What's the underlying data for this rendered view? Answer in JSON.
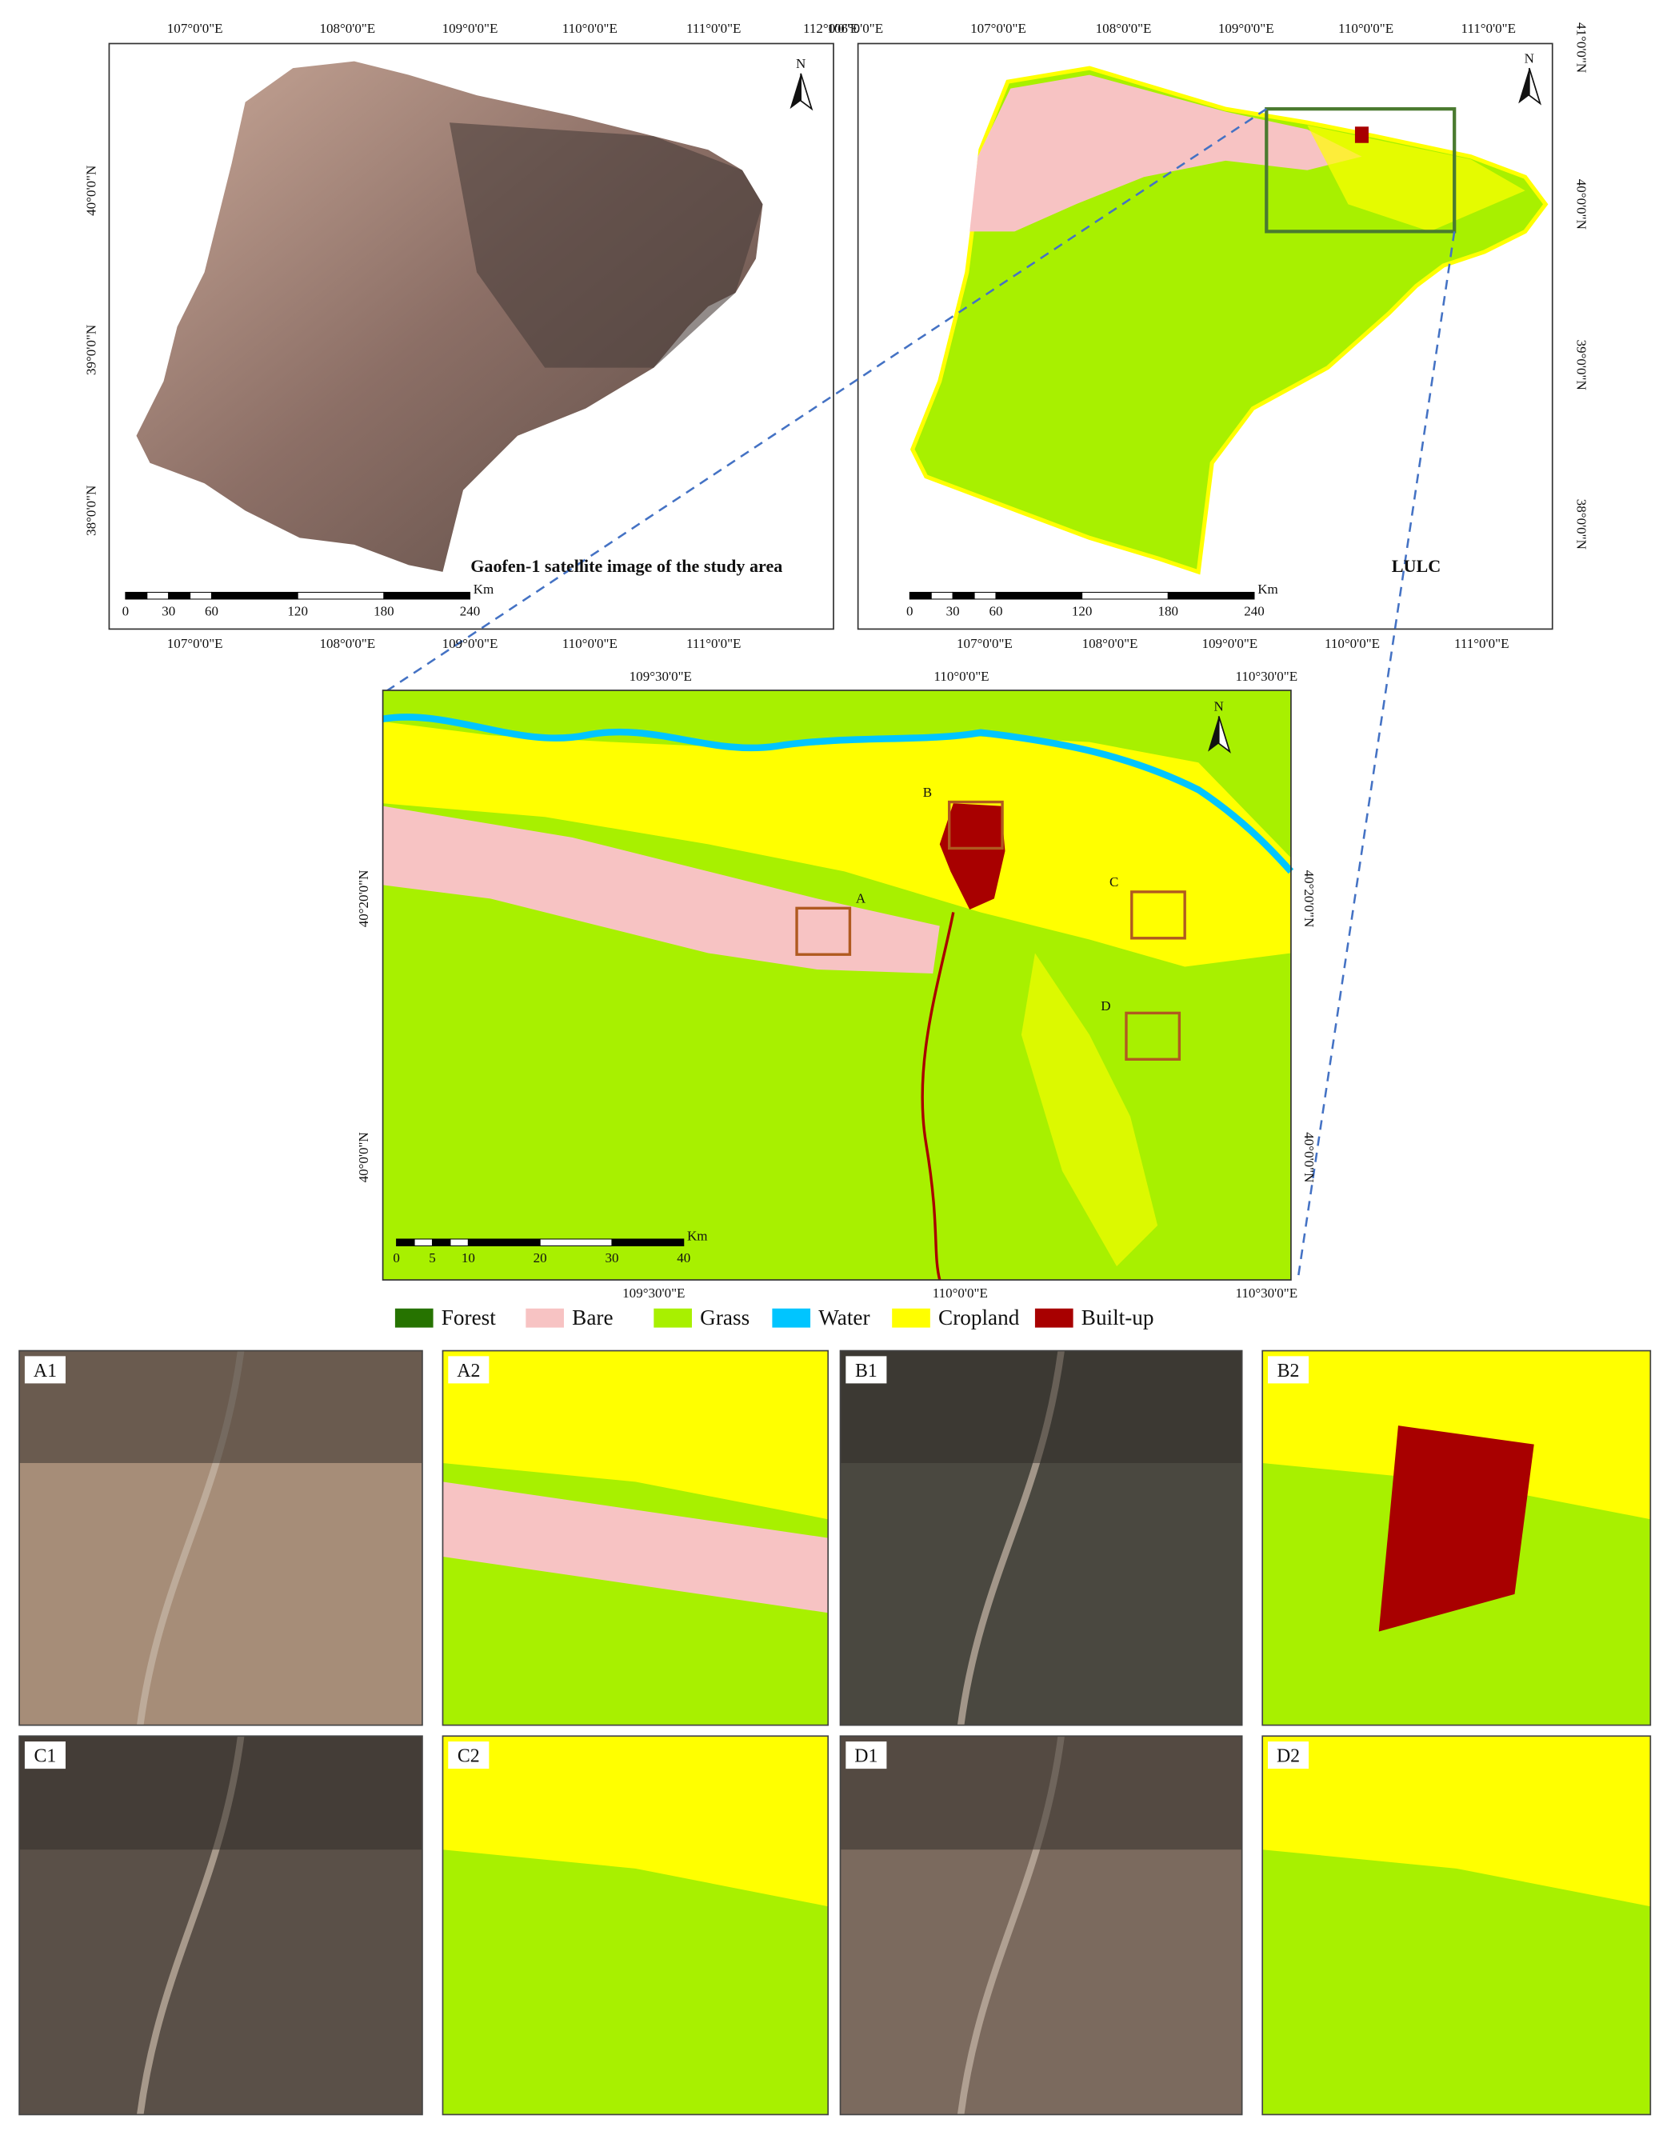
{
  "panels": {
    "satellite": {
      "title": "Gaofen-1 satellite image of the study area",
      "north": "N",
      "top_labels": [
        "107°0'0\"E",
        "108°0'0\"E",
        "109°0'0\"E",
        "110°0'0\"E",
        "111°0'0\"E",
        "112°0'0\"E"
      ],
      "bottom_labels": [
        "107°0'0\"E",
        "108°0'0\"E",
        "109°0'0\"E",
        "110°0'0\"E",
        "111°0'0\"E"
      ],
      "lat_labels": [
        "40°0'0\"N",
        "39°0'0\"N",
        "38°0'0\"N"
      ],
      "scale_labels": [
        "0",
        "30",
        "60",
        "120",
        "180",
        "240"
      ],
      "scale_unit": "Km"
    },
    "lulc": {
      "title": "LULC",
      "north": "N",
      "top_labels": [
        "106°0'0\"E",
        "107°0'0\"E",
        "108°0'0\"E",
        "109°0'0\"E",
        "110°0'0\"E",
        "111°0'0\"E"
      ],
      "bottom_labels": [
        "107°0'0\"E",
        "108°0'0\"E",
        "109°0'0\"E",
        "110°0'0\"E",
        "111°0'0\"E"
      ],
      "lat_labels": [
        "41°0'0\"N",
        "40°0'0\"N",
        "39°0'0\"N",
        "38°0'0\"N"
      ],
      "scale_labels": [
        "0",
        "30",
        "60",
        "120",
        "180",
        "240"
      ],
      "scale_unit": "Km"
    },
    "zoom": {
      "north": "N",
      "top_labels": [
        "109°30'0\"E",
        "110°0'0\"E",
        "110°30'0\"E"
      ],
      "bottom_labels": [
        "109°30'0\"E",
        "110°0'0\"E",
        "110°30'0\"E"
      ],
      "lat_labels": [
        "40°20'0\"N",
        "40°0'0\"N"
      ],
      "scale_labels": [
        "0",
        "5",
        "10",
        "20",
        "30",
        "40"
      ],
      "scale_unit": "Km",
      "boxes": [
        "A",
        "B",
        "C",
        "D"
      ]
    }
  },
  "legend": [
    {
      "label": "Forest",
      "color": "#267300"
    },
    {
      "label": "Bare",
      "color": "#f7c3c3"
    },
    {
      "label": "Grass",
      "color": "#a8f000"
    },
    {
      "label": "Water",
      "color": "#00c5ff"
    },
    {
      "label": "Cropland",
      "color": "#ffff00"
    },
    {
      "label": "Built-up",
      "color": "#a80000"
    }
  ],
  "tiles": [
    "A1",
    "A2",
    "B1",
    "B2",
    "C1",
    "C2",
    "D1",
    "D2"
  ]
}
